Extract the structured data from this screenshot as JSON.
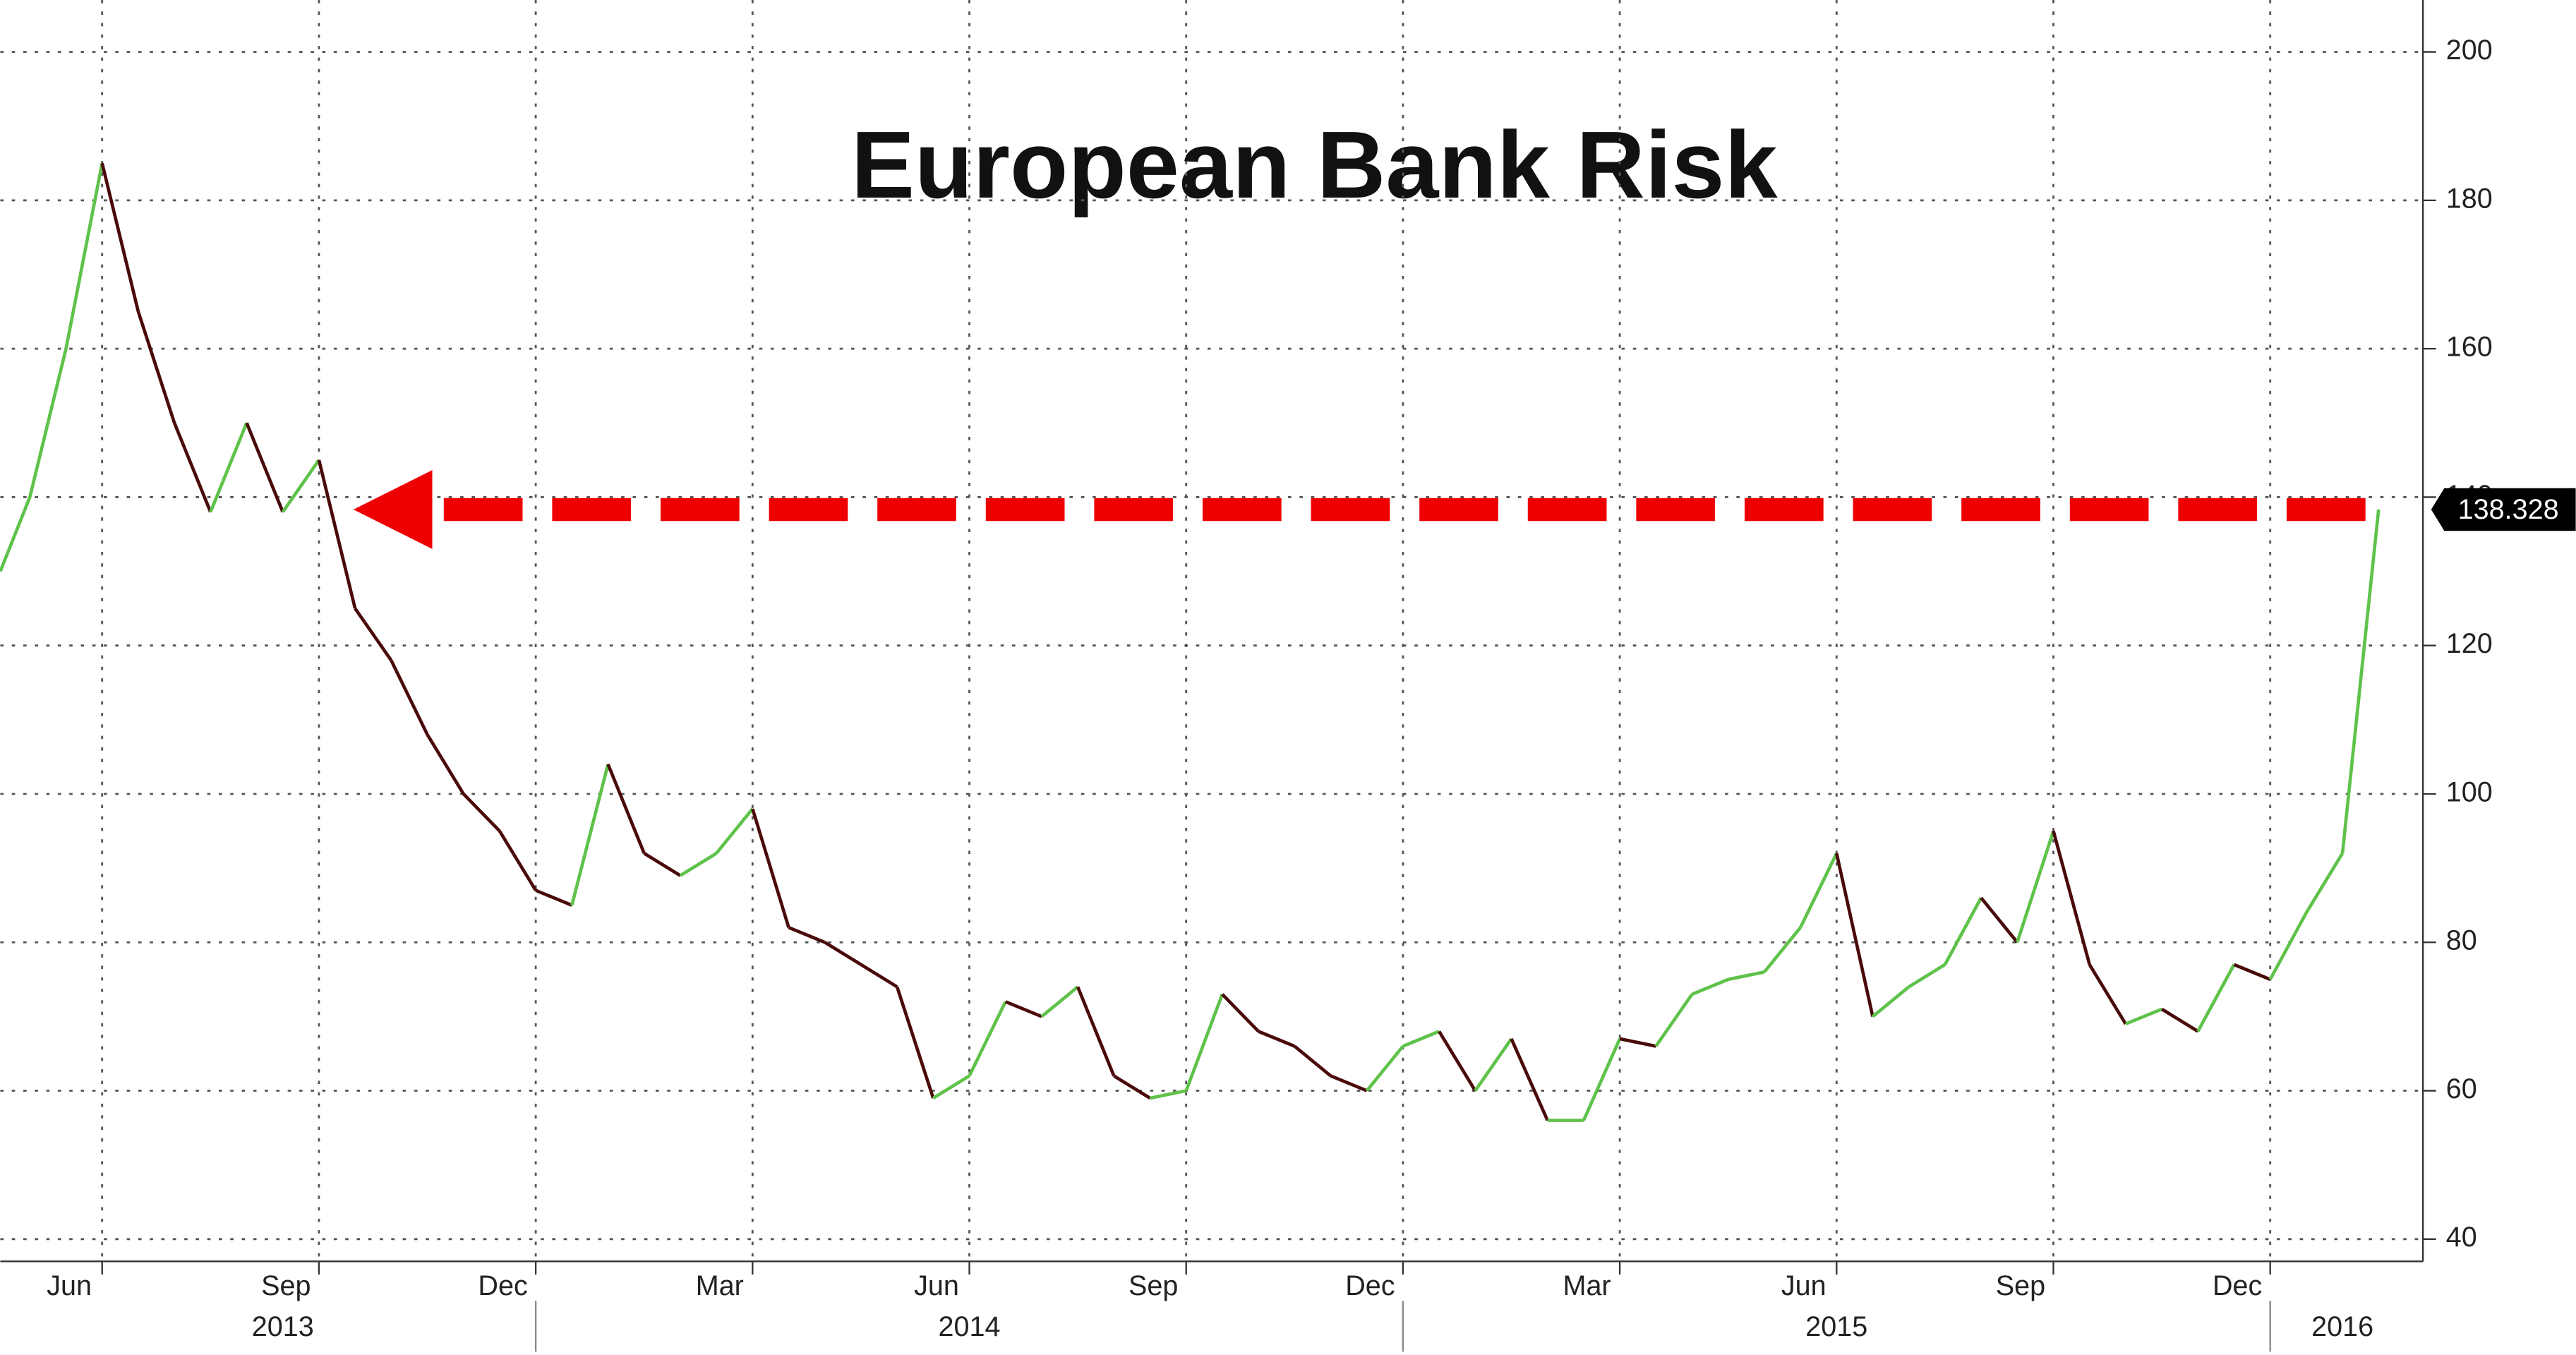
{
  "chart_data": {
    "type": "line",
    "title": "European Bank Risk",
    "categories": [
      null,
      null,
      null,
      "Jun",
      null,
      null,
      null,
      null,
      null,
      "Sep",
      null,
      null,
      null,
      null,
      null,
      "Dec",
      null,
      null,
      null,
      null,
      null,
      "Mar",
      null,
      null,
      null,
      null,
      null,
      "Jun",
      null,
      null,
      null,
      null,
      null,
      "Sep",
      null,
      null,
      null,
      null,
      null,
      "Dec",
      null,
      null,
      null,
      null,
      null,
      "Mar",
      null,
      null,
      null,
      null,
      null,
      "Jun",
      null,
      null,
      null,
      null,
      null,
      "Sep",
      null,
      null,
      null,
      null,
      null,
      "Dec",
      null,
      null,
      null
    ],
    "year_labels": [
      null,
      null,
      null,
      null,
      null,
      null,
      null,
      null,
      "2013",
      null,
      null,
      null,
      null,
      null,
      null,
      null,
      null,
      null,
      null,
      null,
      null,
      null,
      null,
      null,
      null,
      null,
      null,
      "2014",
      null,
      null,
      null,
      null,
      null,
      null,
      null,
      null,
      null,
      null,
      null,
      null,
      null,
      null,
      null,
      null,
      null,
      null,
      null,
      null,
      null,
      null,
      null,
      "2015",
      null,
      null,
      null,
      null,
      null,
      null,
      null,
      null,
      null,
      null,
      null,
      null,
      null,
      "2016",
      null
    ],
    "values": [
      130,
      140,
      160,
      185,
      165,
      150,
      138,
      150,
      138,
      145,
      125,
      118,
      108,
      100,
      95,
      87,
      85,
      104,
      92,
      89,
      92,
      98,
      82,
      80,
      77,
      74,
      59,
      62,
      72,
      70,
      74,
      62,
      59,
      60,
      73,
      68,
      66,
      62,
      60,
      66,
      68,
      60,
      67,
      56,
      56,
      67,
      66,
      73,
      75,
      76,
      82,
      92,
      70,
      74,
      77,
      86,
      80,
      95,
      77,
      69,
      71,
      68,
      77,
      75,
      84,
      92,
      138.328
    ],
    "up_color": "#5fc24a",
    "down_color": "#4a0a0a",
    "arrow_color": "#ee0000",
    "ylim": [
      37,
      207
    ],
    "yticks": [
      40,
      60,
      80,
      100,
      120,
      140,
      160,
      180,
      200
    ],
    "grid": true
  }
}
